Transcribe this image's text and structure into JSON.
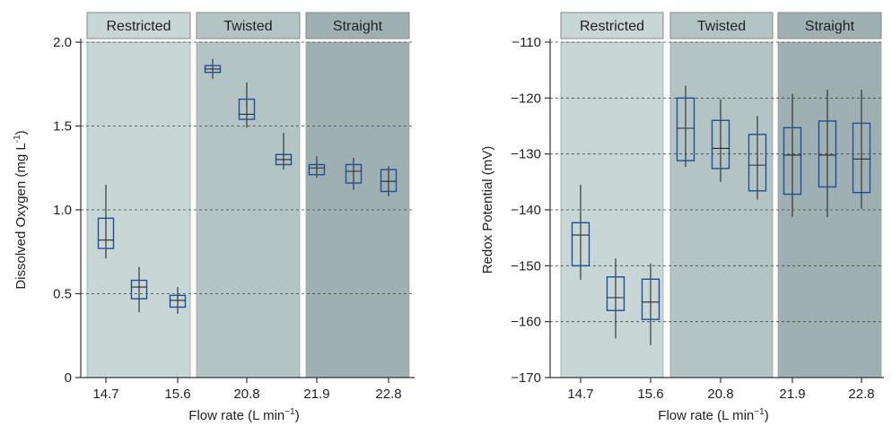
{
  "chart_data": [
    {
      "type": "box",
      "xlabel": "Flow rate (L min",
      "xlabel_sup": "−1",
      "xlabel_end": ")",
      "ylabel": "Dissolved Oxygen (mg L",
      "ylabel_sup": "-1",
      "ylabel_end": ")",
      "ylim": [
        0,
        2.0
      ],
      "yticks": [
        0,
        0.5,
        1.0,
        1.5,
        2.0
      ],
      "ytick_labels": [
        "0",
        "0.5",
        "1.0",
        "1.5",
        "2.0"
      ],
      "grid": true,
      "xtick_labels": [
        "14.7",
        "15.6",
        "20.8",
        "21.9",
        "22.8"
      ],
      "groups": [
        {
          "label": "Restricted",
          "color": "#c8d6d6",
          "header_color": "#c8d6d6"
        },
        {
          "label": "Twisted",
          "color": "#b4c4c4",
          "header_color": "#b4c4c4"
        },
        {
          "label": "Straight",
          "color": "#9eb0b2",
          "header_color": "#9eb0b2"
        }
      ],
      "boxes": [
        {
          "group": 0,
          "min": 0.71,
          "q1": 0.77,
          "median": 0.82,
          "q3": 0.95,
          "max": 1.15
        },
        {
          "group": 0,
          "min": 0.39,
          "q1": 0.47,
          "median": 0.54,
          "q3": 0.58,
          "max": 0.66
        },
        {
          "group": 0,
          "min": 0.38,
          "q1": 0.42,
          "median": 0.46,
          "q3": 0.49,
          "max": 0.54
        },
        {
          "group": 1,
          "min": 1.78,
          "q1": 1.82,
          "median": 1.84,
          "q3": 1.86,
          "max": 1.9
        },
        {
          "group": 1,
          "min": 1.49,
          "q1": 1.54,
          "median": 1.57,
          "q3": 1.66,
          "max": 1.76
        },
        {
          "group": 1,
          "min": 1.24,
          "q1": 1.27,
          "median": 1.3,
          "q3": 1.33,
          "max": 1.46
        },
        {
          "group": 2,
          "min": 1.19,
          "q1": 1.21,
          "median": 1.25,
          "q3": 1.27,
          "max": 1.32
        },
        {
          "group": 2,
          "min": 1.12,
          "q1": 1.16,
          "median": 1.23,
          "q3": 1.27,
          "max": 1.31
        },
        {
          "group": 2,
          "min": 1.08,
          "q1": 1.11,
          "median": 1.17,
          "q3": 1.24,
          "max": 1.26
        }
      ]
    },
    {
      "type": "box",
      "xlabel": "Flow rate (L min",
      "xlabel_sup": "−1",
      "xlabel_end": ")",
      "ylabel": "Redox Potential (mV)",
      "ylim": [
        -170,
        -110
      ],
      "yticks": [
        -170,
        -160,
        -150,
        -140,
        -130,
        -120,
        -110
      ],
      "ytick_labels": [
        "−170",
        "−160",
        "−150",
        "−140",
        "−130",
        "−120",
        "−110"
      ],
      "grid": true,
      "xtick_labels": [
        "14.7",
        "15.6",
        "20.8",
        "21.9",
        "22.8"
      ],
      "groups": [
        {
          "label": "Restricted",
          "color": "#c8d6d6",
          "header_color": "#c8d6d6"
        },
        {
          "label": "Twisted",
          "color": "#b4c4c4",
          "header_color": "#b4c4c4"
        },
        {
          "label": "Straight",
          "color": "#9eb0b2",
          "header_color": "#9eb0b2"
        }
      ],
      "boxes": [
        {
          "group": 0,
          "min": -152.5,
          "q1": -150.0,
          "median": -144.5,
          "q3": -142.3,
          "max": -135.5
        },
        {
          "group": 0,
          "min": -163.0,
          "q1": -158.0,
          "median": -155.7,
          "q3": -152.0,
          "max": -148.7
        },
        {
          "group": 0,
          "min": -164.2,
          "q1": -159.6,
          "median": -156.5,
          "q3": -152.4,
          "max": -149.6
        },
        {
          "group": 1,
          "min": -132.3,
          "q1": -131.2,
          "median": -125.4,
          "q3": -120.0,
          "max": -117.8
        },
        {
          "group": 1,
          "min": -135.0,
          "q1": -132.6,
          "median": -129.0,
          "q3": -124.0,
          "max": -120.2
        },
        {
          "group": 1,
          "min": -138.2,
          "q1": -136.6,
          "median": -132.0,
          "q3": -126.5,
          "max": -123.2
        },
        {
          "group": 2,
          "min": -141.2,
          "q1": -137.2,
          "median": -130.2,
          "q3": -125.3,
          "max": -119.2
        },
        {
          "group": 2,
          "min": -141.3,
          "q1": -135.9,
          "median": -130.2,
          "q3": -124.1,
          "max": -118.5
        },
        {
          "group": 2,
          "min": -139.8,
          "q1": -136.9,
          "median": -130.9,
          "q3": -124.5,
          "max": -118.5
        }
      ]
    }
  ],
  "colors": {
    "box_edge": "#1f4e9a",
    "median_whisker": "#2a2a2a",
    "grid": "#444444",
    "axis": "#333333",
    "header_edge": "#888888"
  }
}
